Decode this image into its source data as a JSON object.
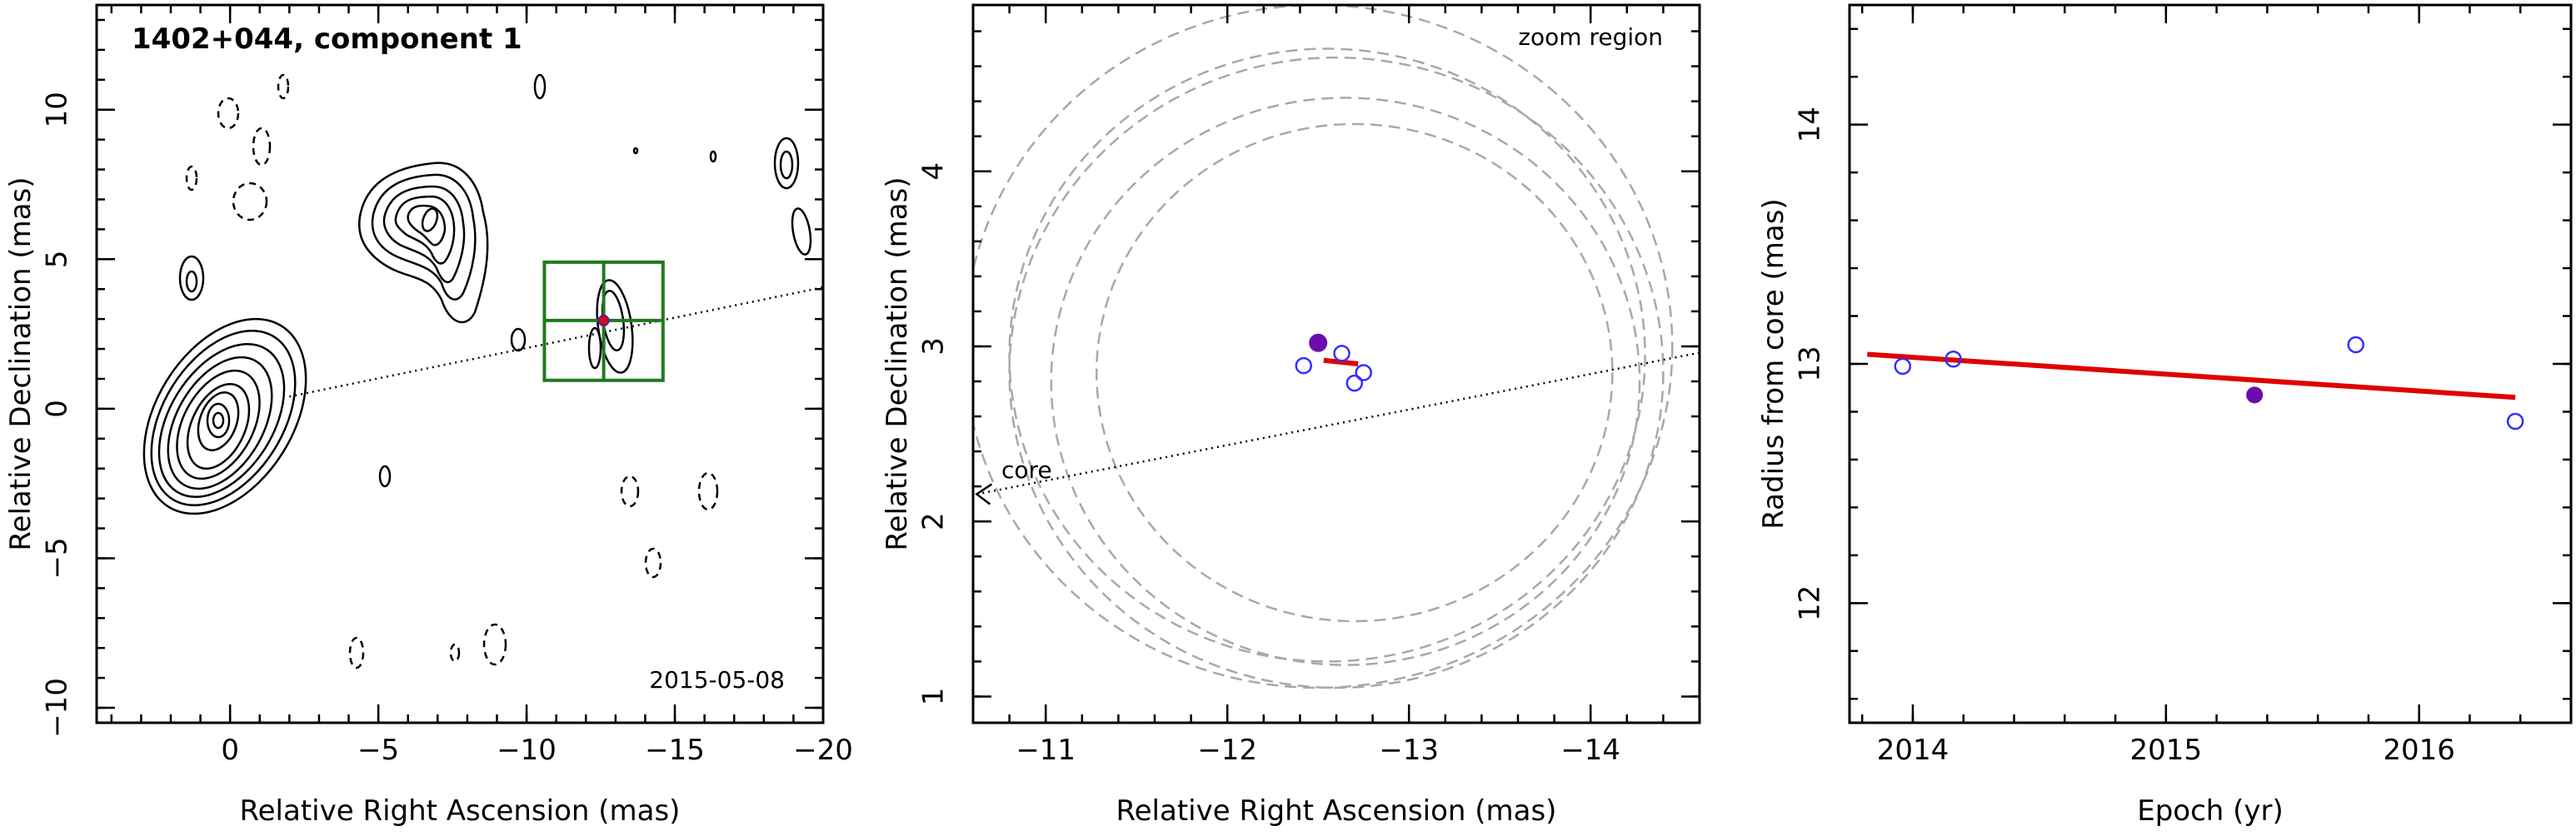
{
  "chart_data": [
    {
      "type": "contour",
      "title": "1402+044, component 1",
      "date_label": "2015-05-08",
      "xlabel": "Relative Right Ascension (mas)",
      "ylabel": "Relative Declination (mas)",
      "xlim": [
        4.5,
        -20
      ],
      "ylim": [
        -10.5,
        13.5
      ],
      "xticks": [
        0,
        -5,
        -10,
        -15,
        -20
      ],
      "xtick_labels": [
        "0",
        "−5",
        "−10",
        "−15",
        "−20"
      ],
      "yticks": [
        -10,
        -5,
        0,
        5,
        10
      ],
      "ytick_labels": [
        "−10",
        "−5",
        "0",
        "5",
        "10"
      ],
      "core_position": [
        0,
        0
      ],
      "component_position": [
        -12.6,
        2.95
      ],
      "zoom_box": {
        "x": [
          -10.6,
          -14.6
        ],
        "y": [
          0.95,
          4.9
        ]
      },
      "axis_line_slope": -0.203,
      "colors": {
        "frame": "#000000",
        "box": "#1e7a1e",
        "component": "#6a0dad",
        "markers": "#3030ff",
        "fit": "#e00000",
        "zoom": "#a8a8a8"
      }
    },
    {
      "type": "scatter",
      "annotation": "zoom region",
      "core_label": "core",
      "xlabel": "Relative Right Ascension (mas)",
      "ylabel": "Relative Declination (mas)",
      "xlim": [
        -10.6,
        -14.6
      ],
      "ylim": [
        0.85,
        4.95
      ],
      "xticks": [
        -11,
        -12,
        -13,
        -14
      ],
      "xtick_labels": [
        "−11",
        "−12",
        "−13",
        "−14"
      ],
      "yticks": [
        1,
        2,
        3,
        4
      ],
      "ytick_labels": [
        "1",
        "2",
        "3",
        "4"
      ],
      "highlight_point": [
        -12.5,
        3.02
      ],
      "open_points": [
        [
          -12.42,
          2.89
        ],
        [
          -12.63,
          2.96
        ],
        [
          -12.7,
          2.79
        ],
        [
          -12.75,
          2.85
        ]
      ],
      "fit_segment": [
        [
          -12.53,
          2.92
        ],
        [
          -12.72,
          2.9
        ]
      ],
      "axis_line_slope": -0.203,
      "zoom_circles": [
        [
          -12.6,
          2.85,
          1.8
        ],
        [
          -12.55,
          2.95,
          1.75
        ],
        [
          -12.65,
          2.8,
          1.62
        ],
        [
          -12.7,
          2.85,
          1.42
        ],
        [
          -12.5,
          3.0,
          1.95
        ]
      ]
    },
    {
      "type": "scatter",
      "xlabel": "Epoch (yr)",
      "ylabel": "Radius from core (mas)",
      "xlim": [
        2013.75,
        2016.6
      ],
      "ylim": [
        11.5,
        14.5
      ],
      "xticks": [
        2014,
        2015,
        2016
      ],
      "xtick_labels": [
        "2014",
        "2015",
        "2016"
      ],
      "yticks": [
        12,
        13,
        14
      ],
      "ytick_labels": [
        "12",
        "13",
        "14"
      ],
      "points": [
        {
          "x": 2013.96,
          "y": 12.99,
          "filled": false
        },
        {
          "x": 2014.16,
          "y": 13.02,
          "filled": false
        },
        {
          "x": 2015.35,
          "y": 12.87,
          "filled": true
        },
        {
          "x": 2015.75,
          "y": 13.08,
          "filled": false
        },
        {
          "x": 2016.38,
          "y": 12.76,
          "filled": false
        }
      ],
      "fit_line": {
        "x": [
          2013.82,
          2016.38
        ],
        "y": [
          13.04,
          12.86
        ]
      }
    }
  ]
}
